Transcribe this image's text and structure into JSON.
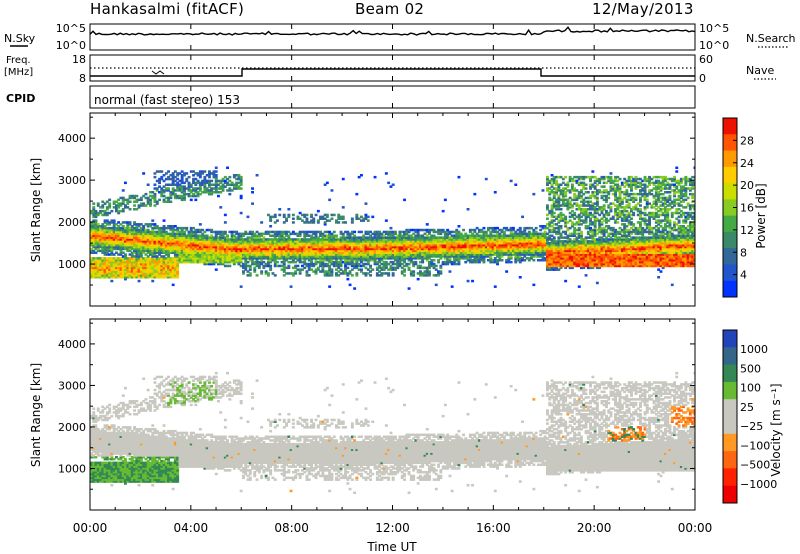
{
  "header": {
    "station": "Hankasalmi (fitACF)",
    "beam": "Beam 02",
    "date": "12/May/2013"
  },
  "panels": {
    "nsky": {
      "left_label": "N.Sky",
      "left_ticks": [
        "10^5",
        "10^0"
      ],
      "right_ticks": [
        "10^5",
        "10^0"
      ],
      "right_label": "N.Search"
    },
    "freq": {
      "left_label_1": "Freq.",
      "left_label_2": "[MHz]",
      "left_ticks": [
        "18",
        "8"
      ],
      "right_ticks": [
        "60",
        "0"
      ],
      "right_label": "Nave"
    },
    "cpid": {
      "label": "CPID",
      "text": "normal (fast stereo) 153"
    }
  },
  "chart_data": [
    {
      "type": "heatmap",
      "title": "",
      "quantity": "Power",
      "xlabel": "",
      "ylabel": "Slant Range [km]",
      "x_ticks": [
        "00:00",
        "04:00",
        "08:00",
        "12:00",
        "16:00",
        "20:00",
        "00:00"
      ],
      "y_ticks": [
        1000,
        2000,
        3000,
        4000
      ],
      "ylim": [
        0,
        4600
      ],
      "xlim_hours": [
        0,
        24
      ],
      "colorbar": {
        "label": "Power [dB]",
        "ticks": [
          4,
          8,
          12,
          16,
          20,
          24,
          28
        ],
        "range": [
          0,
          32
        ],
        "colors": [
          "#0033ff",
          "#2255cc",
          "#336699",
          "#3a8a6a",
          "#44aa44",
          "#88cc22",
          "#ccdd00",
          "#ffcc00",
          "#ff9900",
          "#ff5500",
          "#ee1100"
        ]
      }
    },
    {
      "type": "heatmap",
      "title": "",
      "quantity": "Velocity",
      "xlabel": "Time UT",
      "ylabel": "Slant Range [km]",
      "x_ticks": [
        "00:00",
        "04:00",
        "08:00",
        "12:00",
        "16:00",
        "20:00",
        "00:00"
      ],
      "y_ticks": [
        1000,
        2000,
        3000,
        4000
      ],
      "ylim": [
        0,
        4600
      ],
      "xlim_hours": [
        0,
        24
      ],
      "colorbar": {
        "label": "Velocity [m s⁻¹]",
        "ticks": [
          "1000",
          "500",
          "100",
          "25",
          "−25",
          "−100",
          "−500",
          "−1000"
        ],
        "colors": [
          "#2244bb",
          "#336688",
          "#338855",
          "#66bb33",
          "#c8c8c0",
          "#c8c8c0",
          "#ff9922",
          "#ff6611",
          "#ff2200",
          "#ee0000"
        ]
      }
    }
  ]
}
